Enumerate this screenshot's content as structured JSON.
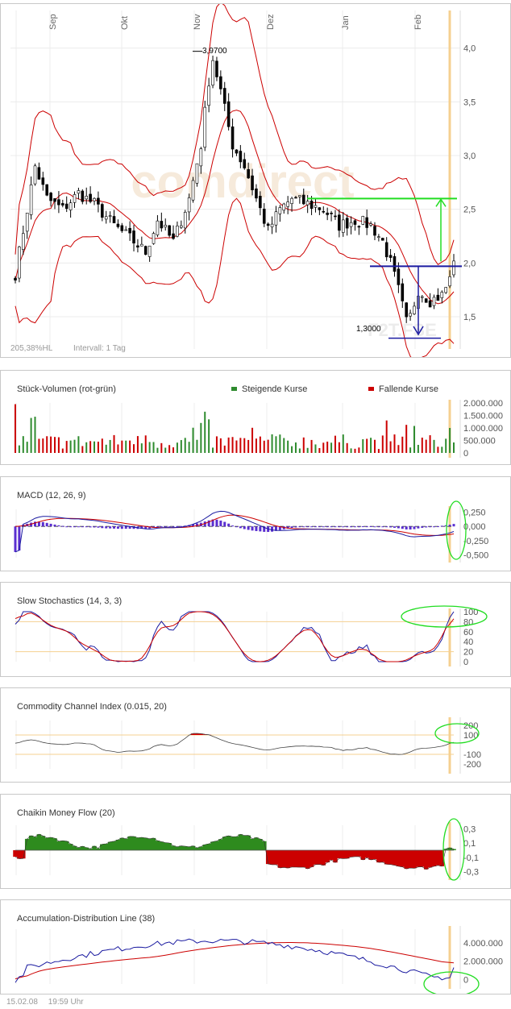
{
  "chart_data": [
    {
      "type": "candlestick",
      "months": [
        "Sep",
        "Okt",
        "Nov",
        "Dez",
        "Jan",
        "Feb"
      ],
      "y_ticks": [
        "4,0",
        "3,5",
        "3,0",
        "2,5",
        "2,0",
        "1,5"
      ],
      "ylim": [
        1.2,
        4.35
      ],
      "high_label": "3,9700",
      "low_label": "1,3000",
      "watermark": "comdirect",
      "watermark2": "F2T.FSE",
      "info": "205,38%HL",
      "interval": "Intervall: 1 Tag",
      "overlays": [
        "Bollinger Bands (upper, middle, lower)",
        "Support / resistance lines",
        "Measured-move arrows"
      ],
      "green_level": 2.6,
      "blue_level": 1.97
    },
    {
      "type": "bar",
      "title": "Stück-Volumen (rot-grün)",
      "legend_up": "Steigende Kurse",
      "legend_down": "Fallende Kurse",
      "y_ticks": [
        "2.000.000",
        "1.500.000",
        "1.000.000",
        "500.000",
        "0"
      ],
      "ylim": [
        0,
        2000000
      ]
    },
    {
      "type": "line",
      "title": "MACD (12, 26, 9)",
      "y_ticks": [
        "0,250",
        "0,000",
        "-0,250",
        "-0,500"
      ],
      "ylim": [
        -0.55,
        0.3
      ]
    },
    {
      "type": "line",
      "title": "Slow Stochastics (14, 3, 3)",
      "y_ticks": [
        "100",
        "80",
        "60",
        "40",
        "20",
        "0"
      ],
      "ylim": [
        0,
        100
      ]
    },
    {
      "type": "area",
      "title": "Commodity Channel Index (0.015, 20)",
      "y_ticks": [
        "200",
        "100",
        "-100",
        "-200"
      ],
      "ylim": [
        -250,
        250
      ]
    },
    {
      "type": "area",
      "title": "Chaikin Money Flow (20)",
      "y_ticks": [
        "0,3",
        "0,1",
        "-0,1",
        "-0,3"
      ],
      "ylim": [
        -0.35,
        0.35
      ]
    },
    {
      "type": "line",
      "title": "Accumulation-Distribution Line (38)",
      "y_ticks": [
        "4.000.000",
        "2.000.000",
        "0"
      ],
      "ylim": [
        -500000,
        5500000
      ]
    }
  ],
  "footer": {
    "date": "15.02.08",
    "time": "19:59 Uhr"
  },
  "colors": {
    "up": "#2e8b2e",
    "down": "#cc0000",
    "blue": "#1a1aa0",
    "highlight": "#f5d090",
    "annotation": "#22dd22"
  }
}
